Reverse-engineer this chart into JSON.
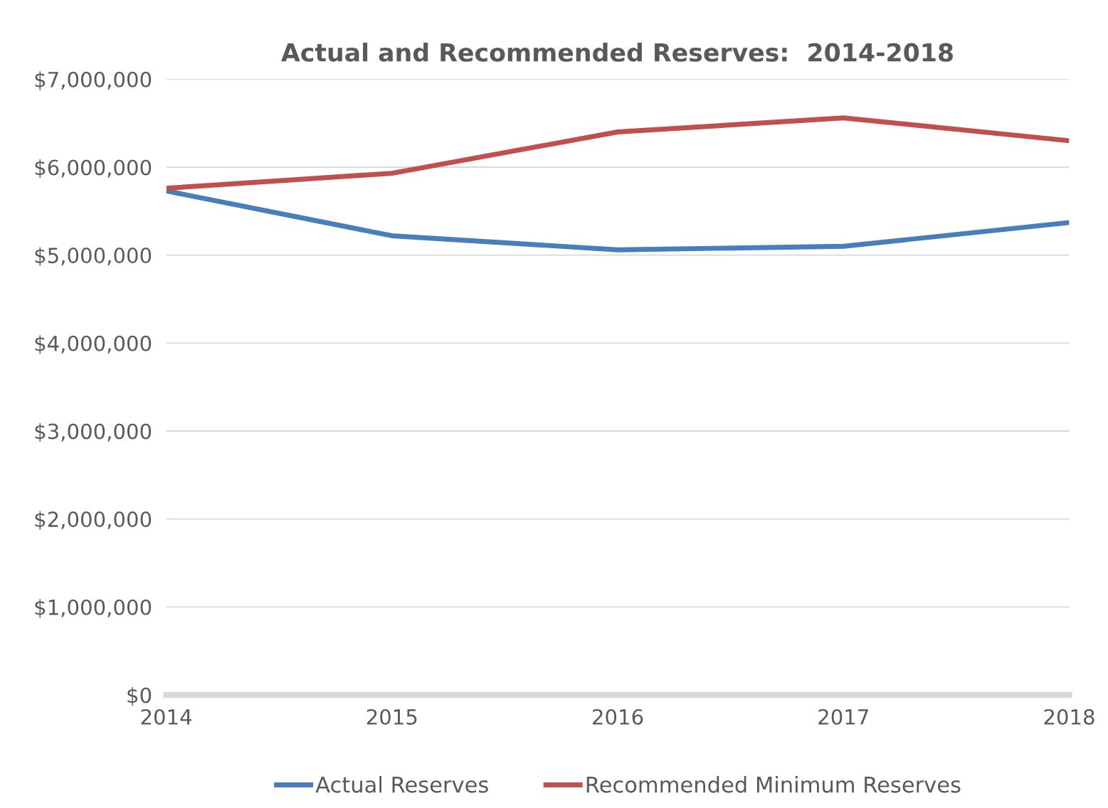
{
  "chart_data": {
    "type": "line",
    "title": "Actual and Recommended Reserves:  2014-2018",
    "x": [
      2014,
      2015,
      2016,
      2017,
      2018
    ],
    "xlim": [
      2014,
      2018
    ],
    "xticks": [
      2014,
      2015,
      2016,
      2017,
      2018
    ],
    "ylim": [
      0,
      7000000
    ],
    "yticks": [
      {
        "value": 0,
        "label": "$0"
      },
      {
        "value": 1000000,
        "label": "$1,000,000"
      },
      {
        "value": 2000000,
        "label": "$2,000,000"
      },
      {
        "value": 3000000,
        "label": "$3,000,000"
      },
      {
        "value": 4000000,
        "label": "$4,000,000"
      },
      {
        "value": 5000000,
        "label": "$5,000,000"
      },
      {
        "value": 6000000,
        "label": "$6,000,000"
      },
      {
        "value": 7000000,
        "label": "$7,000,000"
      }
    ],
    "series": [
      {
        "name": "Actual Reserves",
        "color": "#4a7ebb",
        "values": [
          5730000,
          5220000,
          5060000,
          5100000,
          5370000
        ]
      },
      {
        "name": "Recommended Minimum Reserves",
        "color": "#c0504d",
        "values": [
          5760000,
          5930000,
          6400000,
          6560000,
          6300000
        ]
      }
    ],
    "grid": "y",
    "legend": "bottom",
    "marker": "none",
    "line_style": "solid"
  }
}
